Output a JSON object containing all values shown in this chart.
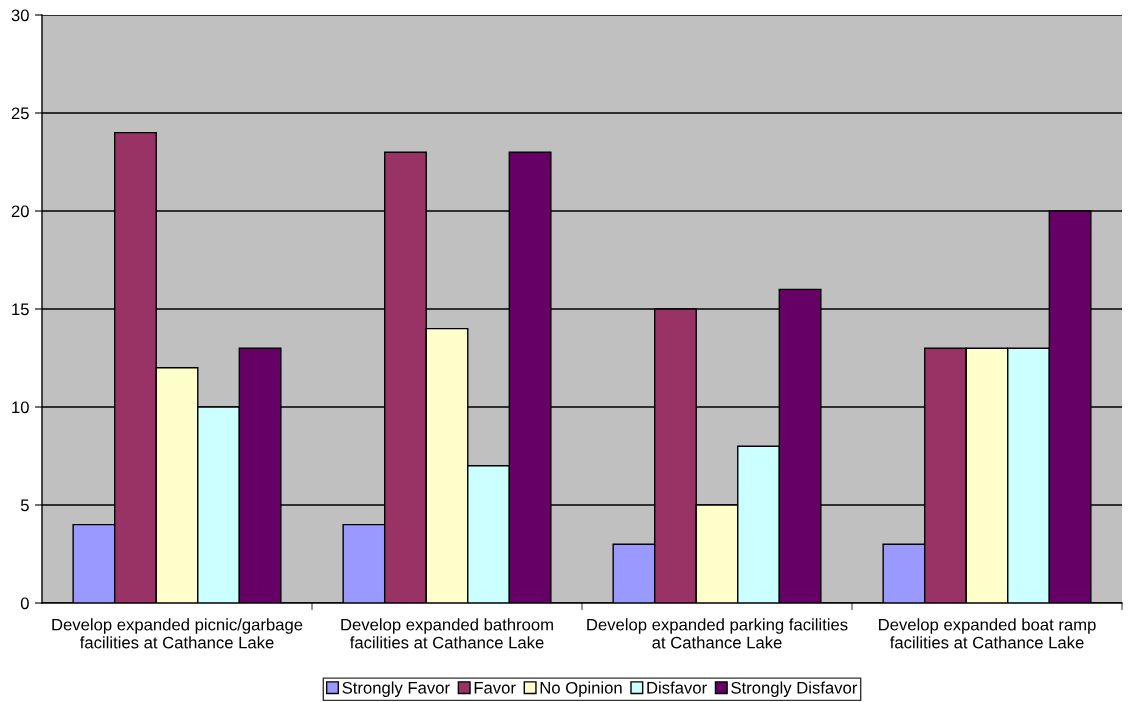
{
  "chart_data": {
    "type": "bar",
    "categories": [
      "Develop expanded picnic/garbage\nfacilities at Cathance Lake",
      "Develop expanded bathroom\nfacilities at Cathance Lake",
      "Develop expanded parking facilities\nat Cathance Lake",
      "Develop expanded boat ramp\nfacilities at Cathance Lake"
    ],
    "series": [
      {
        "name": "Strongly Favor",
        "color": "#9999ff",
        "values": [
          4,
          4,
          3,
          3
        ]
      },
      {
        "name": "Favor",
        "color": "#993366",
        "values": [
          24,
          23,
          15,
          13
        ]
      },
      {
        "name": "No Opinion",
        "color": "#ffffcc",
        "values": [
          12,
          14,
          5,
          13
        ]
      },
      {
        "name": "Disfavor",
        "color": "#ccffff",
        "values": [
          10,
          7,
          8,
          13
        ]
      },
      {
        "name": "Strongly Disfavor",
        "color": "#660066",
        "values": [
          13,
          23,
          16,
          20
        ]
      }
    ],
    "ylim": [
      0,
      30
    ],
    "yticks": [
      0,
      5,
      10,
      15,
      20,
      25,
      30
    ],
    "grid": "y",
    "legend": "bottom"
  }
}
